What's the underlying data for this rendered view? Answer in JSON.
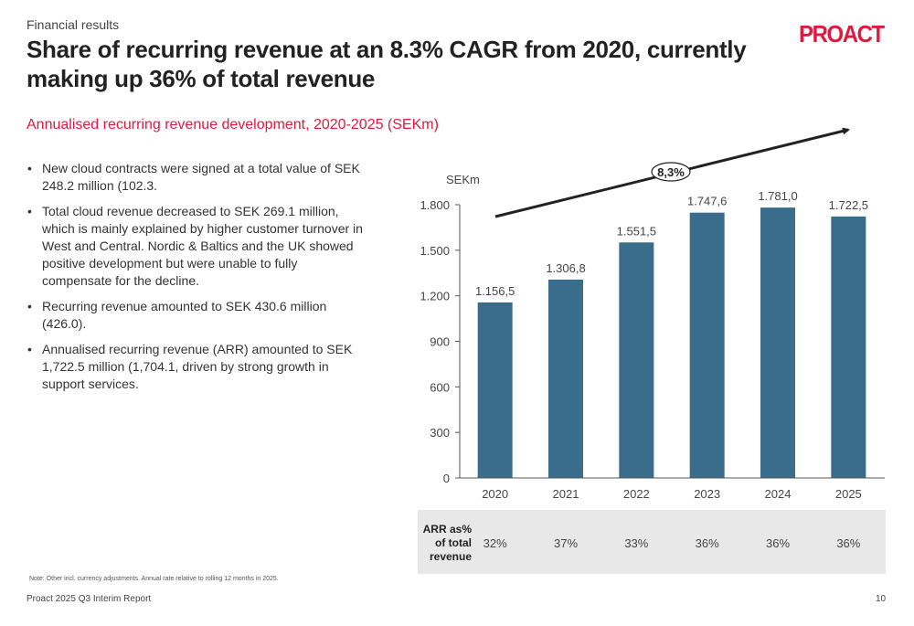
{
  "header": {
    "section": "Financial results",
    "title": "Share of recurring revenue at an 8.3% CAGR from 2020, currently making up 36% of total revenue",
    "logo_text": "PROACT",
    "brand_color": "#e4173e"
  },
  "subtitle": "Annualised recurring revenue development, 2020-2025 (SEKm)",
  "bullets": [
    "New cloud contracts were signed at a total value of SEK 248.2 million (102.3.",
    "Total cloud revenue decreased to SEK 269.1 million, which is mainly explained by higher customer turnover in West and Central. Nordic & Baltics and the UK showed positive development but were unable to fully compensate for the decline.",
    "Recurring revenue amounted to SEK 430.6 million (426.0).",
    "Annualised recurring revenue (ARR) amounted to SEK 1,722.5 million (1,704.1, driven by strong growth in support services."
  ],
  "bullet_symbol": "•",
  "chart_data": {
    "type": "bar",
    "title": "Annualised recurring revenue development, 2020-2025 (SEKm)",
    "ylabel": "SEKm",
    "xlabel": "",
    "categories": [
      "2020",
      "2021",
      "2022",
      "2023",
      "2024",
      "2025"
    ],
    "values": [
      1156.5,
      1306.8,
      1551.5,
      1747.6,
      1781.0,
      1722.5
    ],
    "value_labels": [
      "1.156,5",
      "1.306,8",
      "1.551,5",
      "1.747,6",
      "1.781,0",
      "1.722,5"
    ],
    "ylim": [
      0,
      1800
    ],
    "yticks": [
      0,
      300,
      600,
      900,
      1200,
      1500,
      1800
    ],
    "ytick_labels": [
      "0",
      "300",
      "600",
      "900",
      "1.200",
      "1.500",
      "1.800"
    ],
    "grid": false,
    "bar_color": "#3a6d8c",
    "annotation": {
      "text": "8,3%",
      "meaning": "CAGR trend arrow 2020-2025"
    },
    "table": {
      "row_label": [
        "ARR as%",
        "of total",
        "revenue"
      ],
      "values": [
        "32%",
        "37%",
        "33%",
        "36%",
        "36%",
        "36%"
      ]
    }
  },
  "footer": {
    "note": "Note: Other incl. currency adjustments. Annual rate relative to rolling 12 months in 2025.",
    "report": "Proact 2025 Q3 Interim Report",
    "page": "10"
  }
}
